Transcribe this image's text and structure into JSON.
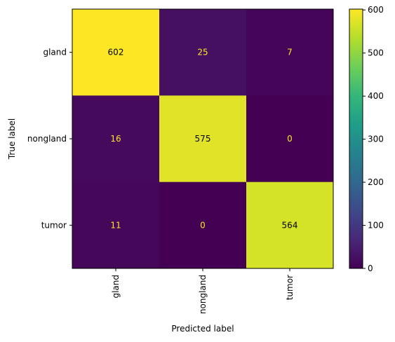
{
  "chart_data": {
    "type": "heatmap",
    "title": "",
    "xlabel": "Predicted label",
    "ylabel": "True label",
    "x_categories": [
      "gland",
      "nongland",
      "tumor"
    ],
    "y_categories": [
      "gland",
      "nongland",
      "tumor"
    ],
    "values": [
      [
        602,
        25,
        7
      ],
      [
        16,
        575,
        0
      ],
      [
        11,
        0,
        564
      ]
    ],
    "colormap": "viridis",
    "vmin": 0,
    "vmax": 602,
    "colorbar_ticks": [
      0,
      100,
      200,
      300,
      400,
      500,
      600
    ],
    "grid": false,
    "colors": {
      "text_on_dark": "#fde725",
      "text_on_light": "#000000",
      "low": "#440154",
      "high": "#fde725"
    }
  }
}
